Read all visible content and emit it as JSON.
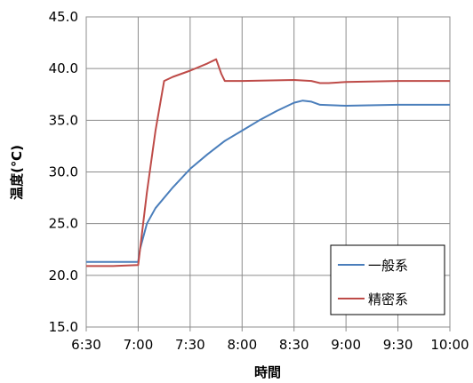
{
  "chart_data": {
    "type": "line",
    "title": "",
    "xlabel": "時間",
    "ylabel": "温度(℃)",
    "ylim": [
      15.0,
      45.0
    ],
    "y_ticks": [
      "15.0",
      "20.0",
      "25.0",
      "30.0",
      "35.0",
      "40.0",
      "45.0"
    ],
    "x_ticks": [
      "6:30",
      "7:00",
      "7:30",
      "8:00",
      "8:30",
      "9:00",
      "9:30",
      "10:00"
    ],
    "grid": true,
    "legend_position": "bottom-right",
    "series": [
      {
        "name": "一般系",
        "color": "#4a7ebb",
        "x": [
          "6:30",
          "6:45",
          "7:00",
          "7:01",
          "7:05",
          "7:10",
          "7:20",
          "7:30",
          "7:40",
          "7:50",
          "8:00",
          "8:10",
          "8:20",
          "8:30",
          "8:35",
          "8:40",
          "8:45",
          "9:00",
          "9:30",
          "10:00"
        ],
        "y": [
          21.3,
          21.3,
          21.3,
          22.5,
          25.0,
          26.5,
          28.5,
          30.3,
          31.7,
          33.0,
          34.0,
          35.0,
          35.9,
          36.7,
          36.9,
          36.8,
          36.5,
          36.4,
          36.5,
          36.5
        ]
      },
      {
        "name": "精密系",
        "color": "#be4b48",
        "x": [
          "6:30",
          "6:45",
          "7:00",
          "7:05",
          "7:10",
          "7:15",
          "7:20",
          "7:30",
          "7:40",
          "7:45",
          "7:48",
          "7:50",
          "8:00",
          "8:30",
          "8:40",
          "8:45",
          "8:50",
          "9:00",
          "9:30",
          "10:00"
        ],
        "y": [
          20.9,
          20.9,
          21.0,
          28.0,
          34.0,
          38.8,
          39.2,
          39.8,
          40.5,
          40.9,
          39.5,
          38.8,
          38.8,
          38.9,
          38.8,
          38.6,
          38.6,
          38.7,
          38.8,
          38.8
        ]
      }
    ]
  }
}
